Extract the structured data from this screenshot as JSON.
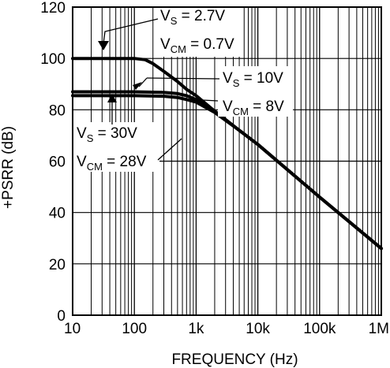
{
  "chart_data": {
    "type": "line",
    "title": "",
    "xlabel": "FREQUENCY (Hz)",
    "ylabel": "+PSRR (dB)",
    "xscale": "log",
    "xlim": [
      10,
      1000000
    ],
    "ylim": [
      0,
      120
    ],
    "grid": true,
    "x_ticks": [
      {
        "value": 10,
        "label": "10"
      },
      {
        "value": 100,
        "label": "100"
      },
      {
        "value": 1000,
        "label": "1k"
      },
      {
        "value": 10000,
        "label": "10k"
      },
      {
        "value": 100000,
        "label": "100k"
      },
      {
        "value": 1000000,
        "label": "1M"
      }
    ],
    "y_ticks": [
      0,
      20,
      40,
      60,
      80,
      100,
      120
    ],
    "series": [
      {
        "x": [
          10,
          100,
          150,
          200,
          300,
          500,
          700,
          1000,
          2000,
          5000,
          10000,
          100000,
          500000,
          1000000
        ],
        "y": [
          100,
          100,
          99.5,
          98,
          95,
          91,
          88,
          85.5,
          79.5,
          72,
          66.5,
          46,
          32,
          26
        ]
      },
      {
        "x": [
          10,
          100,
          300,
          500,
          700,
          1000,
          2000,
          5000,
          10000,
          100000,
          500000,
          1000000
        ],
        "y": [
          87,
          87,
          86.8,
          86.3,
          85.5,
          84,
          79.5,
          72,
          66.5,
          46,
          32,
          26
        ]
      },
      {
        "x": [
          10,
          100,
          300,
          500,
          700,
          1000,
          2000,
          5000,
          10000,
          100000,
          500000,
          1000000
        ],
        "y": [
          85.5,
          85.5,
          85.3,
          84.8,
          84,
          83,
          79,
          72,
          66.5,
          46,
          32,
          26
        ]
      }
    ],
    "annotations": [
      {
        "lines": [
          [
            "V",
            "S",
            " = 2.7V"
          ],
          [
            "V",
            "CM",
            " = 0.7V"
          ]
        ]
      },
      {
        "lines": [
          [
            "V",
            "S",
            " = 10V"
          ],
          [
            "V",
            "CM",
            " = 8V"
          ]
        ]
      },
      {
        "lines": [
          [
            "V",
            "S",
            " = 30V"
          ],
          [
            "V",
            "CM",
            " = 28V"
          ]
        ]
      }
    ]
  }
}
